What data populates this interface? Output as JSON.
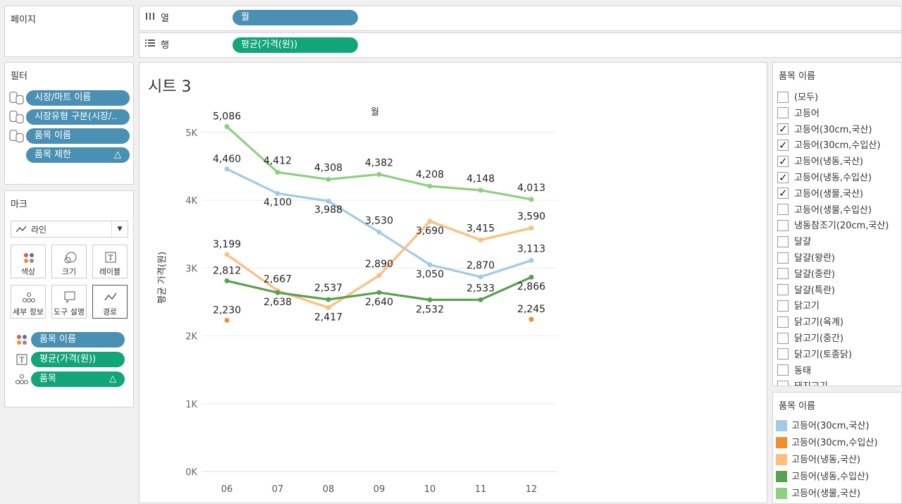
{
  "pages": {
    "title": "페이지"
  },
  "columns": {
    "label": "열",
    "pill": "월"
  },
  "rows": {
    "label": "행",
    "pill": "평균(가격(원))"
  },
  "filters": {
    "title": "필터",
    "items": [
      "시장/마트 이름",
      "시장유형 구분(시장/..",
      "품목 이름",
      "품목 제한"
    ]
  },
  "marks": {
    "title": "마크",
    "type": "라인",
    "buttons": [
      "색상",
      "크기",
      "레이블",
      "세부 정보",
      "도구 설명",
      "경로"
    ],
    "fields": [
      "품목 이름",
      "평균(가격(원))",
      "품목"
    ]
  },
  "sheet": {
    "title": "시트 3"
  },
  "filter_card": {
    "title": "품목 이름",
    "items": [
      {
        "label": "(모두)",
        "checked": false
      },
      {
        "label": "고등어",
        "checked": false
      },
      {
        "label": "고등어(30cm,국산)",
        "checked": true
      },
      {
        "label": "고등어(30cm,수입산)",
        "checked": true
      },
      {
        "label": "고등어(냉동,국산)",
        "checked": true
      },
      {
        "label": "고등어(냉동,수입산)",
        "checked": true
      },
      {
        "label": "고등어(생물,국산)",
        "checked": true
      },
      {
        "label": "고등어(생물,수입산)",
        "checked": false
      },
      {
        "label": "냉동참조기(20cm,국산)",
        "checked": false
      },
      {
        "label": "달걀",
        "checked": false
      },
      {
        "label": "달걀(왕란)",
        "checked": false
      },
      {
        "label": "달걀(중란)",
        "checked": false
      },
      {
        "label": "달걀(특란)",
        "checked": false
      },
      {
        "label": "닭고기",
        "checked": false
      },
      {
        "label": "닭고기(육계)",
        "checked": false
      },
      {
        "label": "닭고기(중간)",
        "checked": false
      },
      {
        "label": "닭고기(토종닭)",
        "checked": false
      },
      {
        "label": "동태",
        "checked": false
      },
      {
        "label": "돼지고기",
        "checked": false
      }
    ]
  },
  "legend": {
    "title": "품목 이름",
    "items": [
      {
        "label": "고등어(30cm,국산)",
        "color": "#a0cbe8"
      },
      {
        "label": "고등어(30cm,수입산)",
        "color": "#f28e2b"
      },
      {
        "label": "고등어(냉동,국산)",
        "color": "#ffbe7d"
      },
      {
        "label": "고등어(냉동,수입산)",
        "color": "#59a14f"
      },
      {
        "label": "고등어(생물,국산)",
        "color": "#8cd17d"
      }
    ]
  },
  "chart_data": {
    "type": "line",
    "title": "월",
    "xlabel": "",
    "ylabel": "평균 가격(원)",
    "categories": [
      "06",
      "07",
      "08",
      "09",
      "10",
      "11",
      "12"
    ],
    "ylim": [
      0,
      5300
    ],
    "yticks": [
      0,
      1000,
      2000,
      3000,
      4000,
      5000
    ],
    "ytick_labels": [
      "0K",
      "1K",
      "2K",
      "3K",
      "4K",
      "5K"
    ],
    "series": [
      {
        "name": "고등어(생물,국산)",
        "color": "#8cd17d",
        "values": [
          5086,
          4412,
          4308,
          4382,
          4208,
          4148,
          4013
        ],
        "labels": [
          "5,086",
          "4,412",
          "4,308",
          "4,382",
          "4,208",
          "4,148",
          "4,013"
        ]
      },
      {
        "name": "고등어(30cm,국산)",
        "color": "#a0cbe8",
        "values": [
          4460,
          4100,
          3988,
          3530,
          3050,
          2870,
          3113
        ],
        "labels": [
          "4,460",
          "4,100",
          "3,988",
          "3,530",
          "3,050",
          "2,870",
          "3,113"
        ]
      },
      {
        "name": "고등어(냉동,국산)",
        "color": "#ffbe7d",
        "values": [
          3199,
          2667,
          2417,
          2890,
          3690,
          3415,
          3590
        ],
        "labels": [
          "3,199",
          "2,667",
          "2,417",
          "2,890",
          "3,690",
          "3,415",
          "3,590"
        ]
      },
      {
        "name": "고등어(냉동,수입산)",
        "color": "#59a14f",
        "values": [
          2812,
          2638,
          2537,
          2640,
          2532,
          2533,
          2866
        ],
        "labels": [
          "2,812",
          "2,638",
          "2,537",
          "2,640",
          "2,532",
          "2,533",
          "2,866"
        ]
      },
      {
        "name": "고등어(30cm,수입산)",
        "color": "#f28e2b",
        "values": [
          2230,
          null,
          null,
          null,
          null,
          null,
          2245
        ],
        "labels": [
          "2,230",
          null,
          null,
          null,
          null,
          null,
          "2,245"
        ]
      }
    ]
  }
}
